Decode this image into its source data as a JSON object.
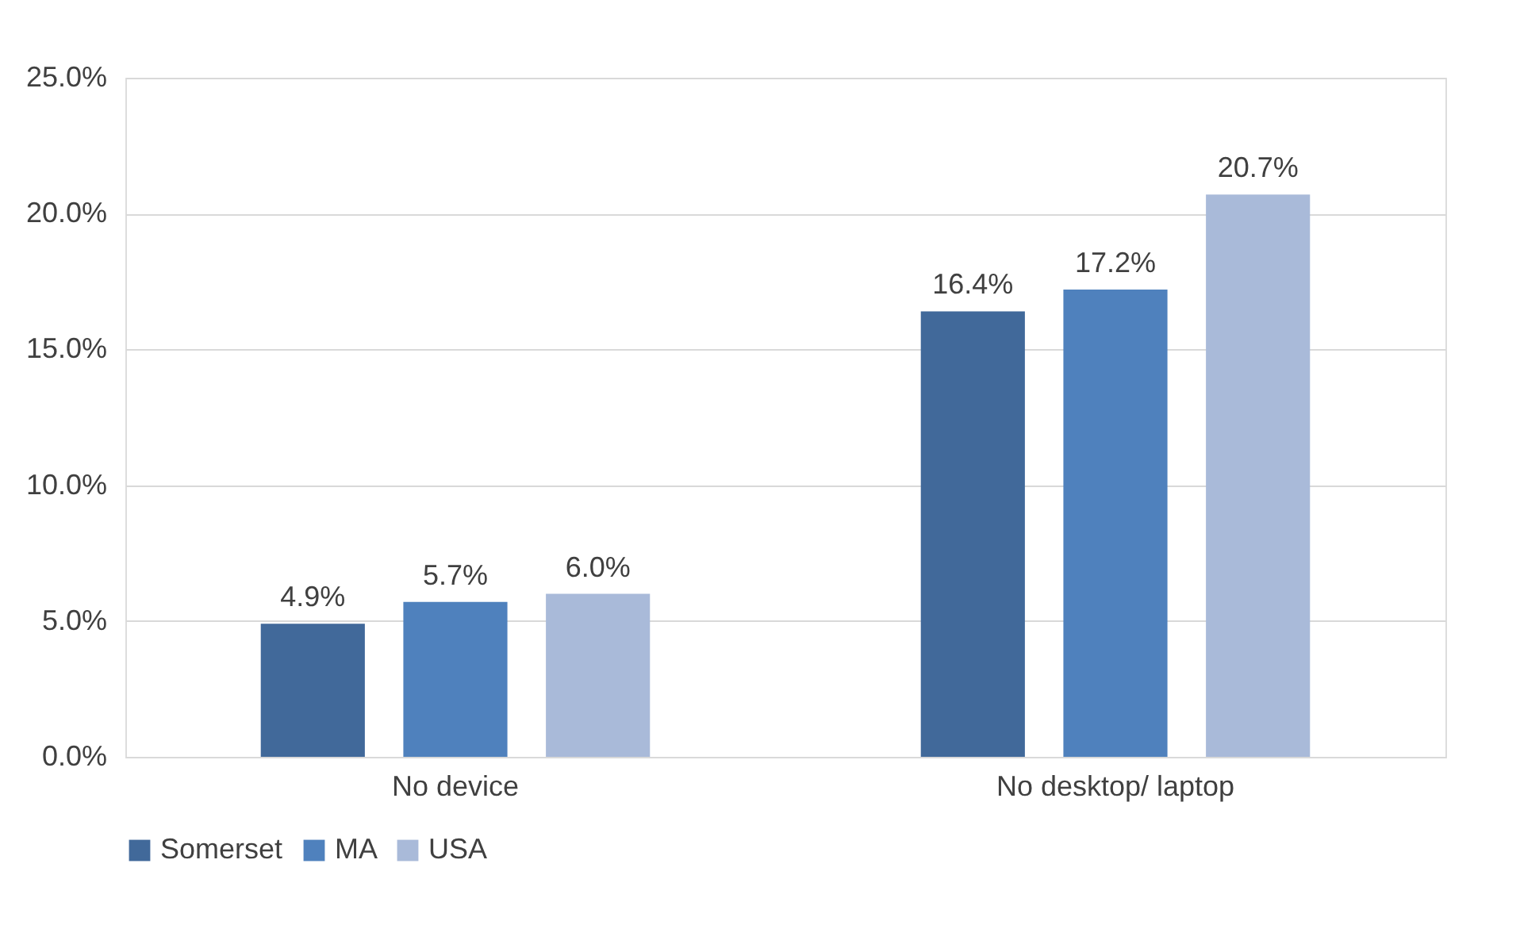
{
  "chart_data": {
    "type": "bar",
    "categories": [
      "No device",
      "No desktop/ laptop"
    ],
    "series": [
      {
        "name": "Somerset",
        "color": "#41699a",
        "values": [
          4.9,
          16.4
        ],
        "value_labels": [
          "4.9%",
          "16.4%"
        ]
      },
      {
        "name": "MA",
        "color": "#4f81bd",
        "values": [
          5.7,
          17.2
        ],
        "value_labels": [
          "5.7%",
          "17.2%"
        ]
      },
      {
        "name": "USA",
        "color": "#a9bad9",
        "values": [
          6.0,
          20.7
        ],
        "value_labels": [
          "6.0%",
          "20.7%"
        ]
      }
    ],
    "ylim": [
      0,
      25
    ],
    "yticks": [
      {
        "value": 0,
        "label": "0.0%"
      },
      {
        "value": 5,
        "label": "5.0%"
      },
      {
        "value": 10,
        "label": "10.0%"
      },
      {
        "value": 15,
        "label": "15.0%"
      },
      {
        "value": 20,
        "label": "20.0%"
      },
      {
        "value": 25,
        "label": "25.0%"
      }
    ],
    "grid": "y",
    "legend": "bottom"
  }
}
